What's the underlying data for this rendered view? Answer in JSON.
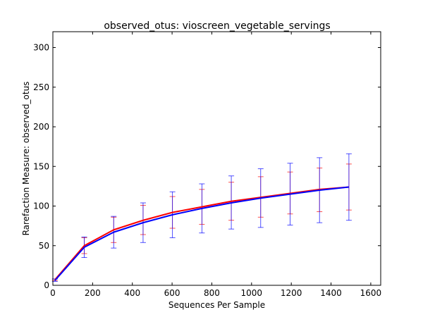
{
  "chart_data": {
    "type": "line",
    "title": "observed_otus: vioscreen_vegetable_servings",
    "xlabel": "Sequences Per Sample",
    "ylabel": "Rarefaction Measure: observed_otus",
    "xlim": [
      0,
      1650
    ],
    "ylim": [
      0,
      320
    ],
    "xticks": [
      0,
      200,
      400,
      600,
      800,
      1000,
      1200,
      1400,
      1600
    ],
    "yticks": [
      0,
      50,
      100,
      150,
      200,
      250,
      300
    ],
    "grid": false,
    "legend": "none",
    "x": [
      10,
      158,
      306,
      454,
      602,
      750,
      898,
      1046,
      1194,
      1342,
      1490
    ],
    "series": [
      {
        "color": "#ff0000",
        "values": [
          7,
          50,
          70,
          82,
          92,
          99,
          106,
          111,
          116,
          121,
          124
        ],
        "err_low": [
          6,
          40,
          54,
          64,
          72,
          77,
          82,
          86,
          90,
          93,
          95
        ],
        "err_high": [
          8,
          60,
          86,
          101,
          112,
          121,
          130,
          137,
          143,
          148,
          153
        ]
      },
      {
        "color": "#0000ff",
        "values": [
          6,
          48,
          67,
          79,
          89,
          97,
          104,
          110,
          115,
          120,
          124
        ],
        "err_low": [
          5,
          35,
          47,
          54,
          60,
          66,
          71,
          73,
          76,
          79,
          82
        ],
        "err_high": [
          8,
          61,
          87,
          104,
          118,
          128,
          138,
          147,
          154,
          161,
          166
        ]
      }
    ]
  }
}
